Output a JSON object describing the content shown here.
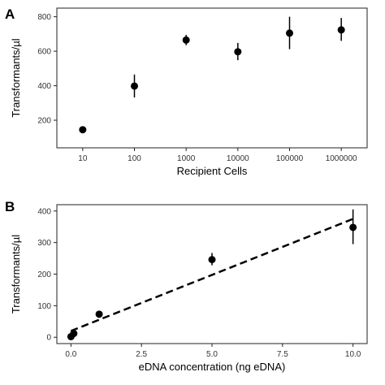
{
  "chart_data": [
    {
      "panel": "A",
      "type": "scatter",
      "xscale": "log",
      "x": [
        10,
        100,
        1000,
        10000,
        100000,
        1000000
      ],
      "x_tick_labels": [
        "10",
        "100",
        "1000",
        "10000",
        "100000",
        "1000000"
      ],
      "y": [
        145,
        398,
        665,
        597,
        705,
        724
      ],
      "err_low": [
        130,
        332,
        635,
        548,
        612,
        660
      ],
      "err_high": [
        158,
        465,
        695,
        648,
        800,
        793
      ],
      "xlabel": "Recipient Cells",
      "ylabel": "Transformants/µl",
      "ylim": [
        40,
        850
      ],
      "yticks": [
        200,
        400,
        600,
        800
      ],
      "grid": false
    },
    {
      "panel": "B",
      "type": "scatter",
      "x": [
        0,
        0.1,
        1,
        5,
        10
      ],
      "y": [
        2,
        12,
        73,
        246,
        348
      ],
      "err_low": [
        0,
        6,
        68,
        228,
        295
      ],
      "err_high": [
        5,
        18,
        78,
        267,
        405
      ],
      "fit_line": {
        "x": [
          0,
          10
        ],
        "y": [
          20,
          375
        ],
        "style": "dashed"
      },
      "xticks": [
        0.0,
        2.5,
        5.0,
        7.5,
        10.0
      ],
      "x_tick_labels": [
        "0.0",
        "2.5",
        "5.0",
        "7.5",
        "10.0"
      ],
      "yticks": [
        0,
        100,
        200,
        300,
        400
      ],
      "xlabel": "eDNA concentration (ng eDNA)",
      "ylabel": "Transformants/µl",
      "xlim": [
        -0.5,
        10.5
      ],
      "ylim": [
        -20,
        420
      ],
      "grid": false
    }
  ]
}
